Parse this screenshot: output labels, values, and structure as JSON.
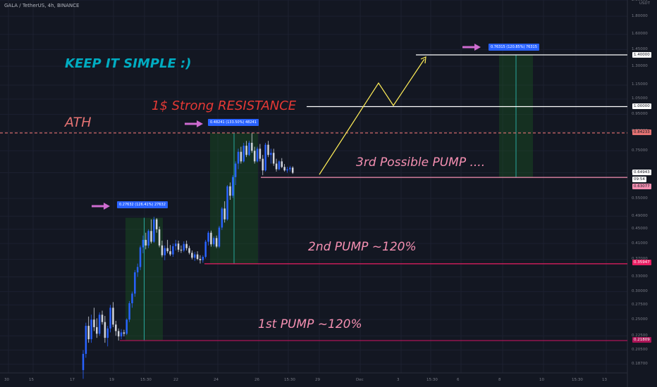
{
  "header": {
    "symbol": "GALA / TetherUS, 4h, BINANCE",
    "currency_a": "USDT"
  },
  "annotations": {
    "keep": "KEEP IT SIMPLE :)",
    "ath": "ATH",
    "resistance": "1$ Strong RESISTANCE",
    "third": "3rd Possible PUMP ....",
    "second": "2nd PUMP ~120%",
    "first": "1st PUMP ~120%"
  },
  "pump_boxes": {
    "p1": "0.27632 (126.41%) 27632",
    "p2": "0.48241 (133.50%) 48241",
    "p3": "0.76315 (120.85%) 76315"
  },
  "price_labels": {
    "level_140": "1.40000",
    "level_100": "1.00000",
    "ath": "0.84233",
    "current": "0.64943",
    "countdown": "09:54",
    "support_3": "0.63077",
    "support_2": "0.35947",
    "support_1": "0.21809"
  },
  "colors": {
    "background": "#131722",
    "up": "#2962ff",
    "down": "#d1d4dc",
    "annotation_pink": "#f48fb1",
    "annotation_red": "#e53935",
    "annotation_teal": "#00acc1",
    "arrow_purple": "#ce6bd0",
    "path_yellow": "#ffee58",
    "pump_box_green": "#1b5e20",
    "support_1": "#ad1457",
    "support_2": "#e91e63"
  },
  "chart_data": {
    "type": "candlestick",
    "y_axis": "log",
    "y_ticks": [
      "2.00000",
      "1.80000",
      "1.60000",
      "1.45000",
      "1.30000",
      "1.15000",
      "1.05000",
      "0.95000",
      "0.85000",
      "0.75000",
      "0.65000",
      "0.55000",
      "0.49000",
      "0.45000",
      "0.41000",
      "0.37000",
      "0.33000",
      "0.30000",
      "0.27500",
      "0.25000",
      "0.22500",
      "0.20500",
      "0.18700"
    ],
    "x_ticks": [
      "30",
      "15",
      "17",
      "19",
      "15:30",
      "22",
      "24",
      "26",
      "15:30",
      "29",
      "Dec",
      "3",
      "15:30",
      "6",
      "8",
      "10",
      "15:30",
      "13"
    ],
    "levels": {
      "ath": 0.84233,
      "resistance": 1.0,
      "target": 1.4,
      "support_1": 0.21809,
      "support_2": 0.35947,
      "support_3": 0.63077,
      "current": 0.64943
    },
    "candles": [
      [
        0.18,
        0.205,
        0.17,
        0.2
      ],
      [
        0.2,
        0.245,
        0.195,
        0.24
      ],
      [
        0.24,
        0.255,
        0.215,
        0.22
      ],
      [
        0.22,
        0.258,
        0.215,
        0.25
      ],
      [
        0.25,
        0.27,
        0.232,
        0.238
      ],
      [
        0.238,
        0.252,
        0.222,
        0.228
      ],
      [
        0.228,
        0.262,
        0.225,
        0.258
      ],
      [
        0.258,
        0.265,
        0.242,
        0.246
      ],
      [
        0.246,
        0.256,
        0.215,
        0.222
      ],
      [
        0.222,
        0.24,
        0.21,
        0.236
      ],
      [
        0.236,
        0.275,
        0.23,
        0.27
      ],
      [
        0.27,
        0.28,
        0.238,
        0.242
      ],
      [
        0.242,
        0.248,
        0.225,
        0.232
      ],
      [
        0.232,
        0.236,
        0.218,
        0.224
      ],
      [
        0.224,
        0.235,
        0.22,
        0.23
      ],
      [
        0.23,
        0.234,
        0.224,
        0.228
      ],
      [
        0.228,
        0.252,
        0.226,
        0.25
      ],
      [
        0.25,
        0.282,
        0.246,
        0.278
      ],
      [
        0.278,
        0.3,
        0.27,
        0.296
      ],
      [
        0.296,
        0.345,
        0.29,
        0.34
      ],
      [
        0.34,
        0.36,
        0.33,
        0.352
      ],
      [
        0.352,
        0.405,
        0.345,
        0.4
      ],
      [
        0.4,
        0.432,
        0.385,
        0.42
      ],
      [
        0.42,
        0.44,
        0.395,
        0.405
      ],
      [
        0.405,
        0.45,
        0.398,
        0.445
      ],
      [
        0.445,
        0.48,
        0.41,
        0.415
      ],
      [
        0.415,
        0.488,
        0.412,
        0.48
      ],
      [
        0.48,
        0.484,
        0.44,
        0.45
      ],
      [
        0.45,
        0.458,
        0.4,
        0.405
      ],
      [
        0.405,
        0.418,
        0.375,
        0.38
      ],
      [
        0.38,
        0.405,
        0.368,
        0.398
      ],
      [
        0.398,
        0.42,
        0.385,
        0.39
      ],
      [
        0.39,
        0.406,
        0.378,
        0.382
      ],
      [
        0.382,
        0.41,
        0.376,
        0.403
      ],
      [
        0.403,
        0.42,
        0.392,
        0.41
      ],
      [
        0.41,
        0.418,
        0.388,
        0.394
      ],
      [
        0.394,
        0.405,
        0.386,
        0.392
      ],
      [
        0.392,
        0.416,
        0.388,
        0.409
      ],
      [
        0.409,
        0.418,
        0.392,
        0.398
      ],
      [
        0.398,
        0.404,
        0.382,
        0.386
      ],
      [
        0.386,
        0.392,
        0.37,
        0.374
      ],
      [
        0.374,
        0.388,
        0.366,
        0.382
      ],
      [
        0.382,
        0.39,
        0.368,
        0.371
      ],
      [
        0.371,
        0.38,
        0.36,
        0.368
      ],
      [
        0.368,
        0.38,
        0.362,
        0.376
      ],
      [
        0.376,
        0.42,
        0.372,
        0.415
      ],
      [
        0.415,
        0.445,
        0.405,
        0.44
      ],
      [
        0.44,
        0.446,
        0.402,
        0.408
      ],
      [
        0.408,
        0.43,
        0.402,
        0.425
      ],
      [
        0.425,
        0.432,
        0.398,
        0.402
      ],
      [
        0.402,
        0.46,
        0.398,
        0.455
      ],
      [
        0.455,
        0.52,
        0.448,
        0.515
      ],
      [
        0.515,
        0.54,
        0.47,
        0.48
      ],
      [
        0.48,
        0.6,
        0.476,
        0.595
      ],
      [
        0.595,
        0.61,
        0.545,
        0.56
      ],
      [
        0.56,
        0.64,
        0.552,
        0.632
      ],
      [
        0.632,
        0.7,
        0.6,
        0.69
      ],
      [
        0.69,
        0.76,
        0.665,
        0.745
      ],
      [
        0.745,
        0.77,
        0.69,
        0.7
      ],
      [
        0.7,
        0.79,
        0.695,
        0.775
      ],
      [
        0.775,
        0.8,
        0.72,
        0.73
      ],
      [
        0.73,
        0.8,
        0.725,
        0.79
      ],
      [
        0.79,
        0.84,
        0.74,
        0.75
      ],
      [
        0.75,
        0.77,
        0.69,
        0.7
      ],
      [
        0.7,
        0.77,
        0.695,
        0.76
      ],
      [
        0.76,
        0.784,
        0.7,
        0.712
      ],
      [
        0.712,
        0.73,
        0.64,
        0.66
      ],
      [
        0.66,
        0.79,
        0.655,
        0.78
      ],
      [
        0.78,
        0.8,
        0.72,
        0.73
      ],
      [
        0.73,
        0.76,
        0.69,
        0.74
      ],
      [
        0.74,
        0.76,
        0.68,
        0.69
      ],
      [
        0.69,
        0.712,
        0.655,
        0.665
      ],
      [
        0.665,
        0.705,
        0.66,
        0.7
      ],
      [
        0.7,
        0.715,
        0.67,
        0.675
      ],
      [
        0.675,
        0.688,
        0.655,
        0.66
      ],
      [
        0.66,
        0.676,
        0.65,
        0.665
      ],
      [
        0.665,
        0.68,
        0.655,
        0.672
      ],
      [
        0.672,
        0.678,
        0.645,
        0.65
      ]
    ]
  }
}
